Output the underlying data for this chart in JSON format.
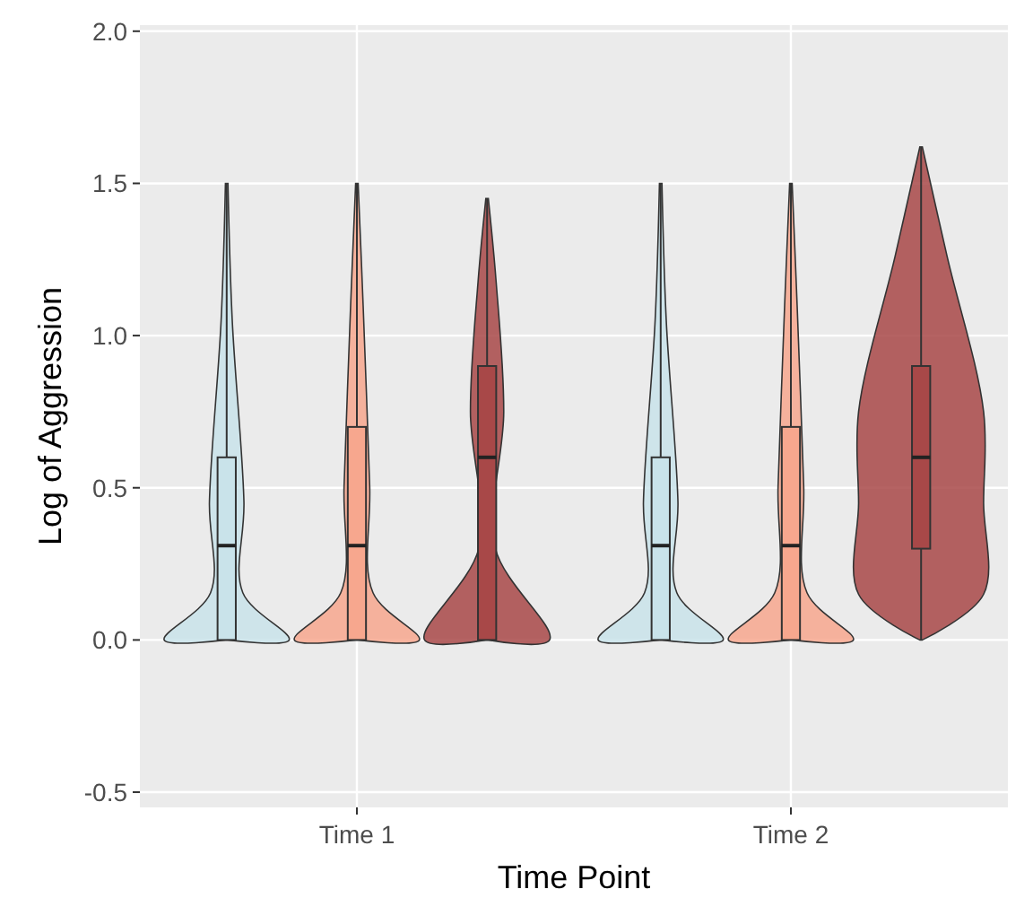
{
  "chart_data": {
    "type": "box",
    "xlabel": "Time Point",
    "ylabel": "Log of Aggression",
    "categories": [
      "Time 1",
      "Time 2"
    ],
    "series": [
      {
        "color": "#c9e3ea",
        "boxes": [
          {
            "low": 0,
            "q1": 0,
            "median": 0.31,
            "q3": 0.6,
            "high": 1.5
          },
          {
            "low": 0,
            "q1": 0,
            "median": 0.31,
            "q3": 0.6,
            "high": 1.5
          }
        ]
      },
      {
        "color": "#f7a78e",
        "boxes": [
          {
            "low": 0,
            "q1": 0,
            "median": 0.31,
            "q3": 0.7,
            "high": 1.5
          },
          {
            "low": 0,
            "q1": 0,
            "median": 0.31,
            "q3": 0.7,
            "high": 1.5
          }
        ]
      },
      {
        "color": "#a84848",
        "boxes": [
          {
            "low": 0,
            "q1": 0,
            "median": 0.6,
            "q3": 0.9,
            "high": 1.45
          },
          {
            "low": 0,
            "q1": 0.3,
            "median": 0.6,
            "q3": 0.9,
            "high": 1.62
          }
        ]
      }
    ],
    "ylim": [
      -0.55,
      2.02
    ],
    "yticks": [
      -0.5,
      {
        "value": 0,
        "label": "0.0"
      },
      0.5,
      {
        "value": 1,
        "label": "1.0"
      },
      1.5,
      {
        "value": 2,
        "label": "2.0"
      }
    ],
    "grid": true
  }
}
